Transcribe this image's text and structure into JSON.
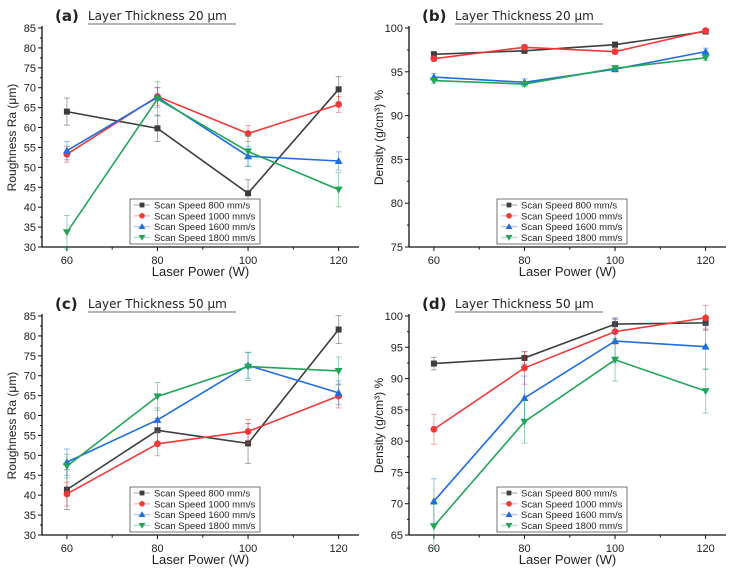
{
  "colors": {
    "s800": "#3d3d3d",
    "s1000": "#f03a3a",
    "s1600": "#1f6ee0",
    "s1800": "#22a55a"
  },
  "chart_data": [
    {
      "type": "line",
      "letter": "(a)",
      "title": "Layer Thickness 20 μm",
      "xlabel": "Laser Power (W)",
      "ylabel": "Roughness Ra (μm)",
      "x": [
        60,
        80,
        100,
        120
      ],
      "xlim": [
        54.5,
        124.5
      ],
      "ylim": [
        30,
        85
      ],
      "ystep": 5,
      "xticks": [
        "60",
        "80",
        "100",
        "120"
      ],
      "yticks": [
        "30",
        "35",
        "40",
        "45",
        "50",
        "55",
        "60",
        "65",
        "70",
        "75",
        "80",
        "85"
      ],
      "legend": "bottom-center",
      "series": [
        {
          "name": "Scan Speed 800 mm/s",
          "marker": "square",
          "values": [
            64.0,
            59.8,
            43.5,
            69.6
          ],
          "errors": [
            3.4,
            3.3,
            3.4,
            3.2
          ]
        },
        {
          "name": "Scan Speed 1000 mm/s",
          "marker": "circle",
          "values": [
            53.3,
            67.8,
            58.5,
            65.8
          ],
          "errors": [
            2.0,
            2.2,
            2.0,
            2.0
          ]
        },
        {
          "name": "Scan Speed 1600 mm/s",
          "marker": "triangle-up",
          "values": [
            54.2,
            67.6,
            52.8,
            51.6
          ],
          "errors": [
            2.3,
            2.5,
            2.5,
            2.3
          ]
        },
        {
          "name": "Scan Speed 1800 mm/s",
          "marker": "triangle-down",
          "values": [
            33.7,
            67.2,
            54.0,
            44.4
          ],
          "errors": [
            4.2,
            4.3,
            3.8,
            4.3
          ]
        }
      ]
    },
    {
      "type": "line",
      "letter": "(b)",
      "title": "Layer Thickness 20 μm",
      "xlabel": "Laser Power (W)",
      "ylabel": "Density (g/cm³) %",
      "x": [
        60,
        80,
        100,
        120
      ],
      "xlim": [
        54.5,
        124.5
      ],
      "ylim": [
        75,
        100
      ],
      "ystep": 5,
      "xticks": [
        "60",
        "80",
        "100",
        "120"
      ],
      "yticks": [
        "75",
        "80",
        "85",
        "90",
        "95",
        "100"
      ],
      "legend": "bottom-center",
      "series": [
        {
          "name": "Scan Speed 800 mm/s",
          "marker": "square",
          "values": [
            97.0,
            97.4,
            98.1,
            99.6
          ],
          "errors": [
            0.3,
            0.3,
            0.3,
            0.3
          ]
        },
        {
          "name": "Scan Speed 1000 mm/s",
          "marker": "circle",
          "values": [
            96.5,
            97.8,
            97.3,
            99.7
          ],
          "errors": [
            0.3,
            0.3,
            0.3,
            0.2
          ]
        },
        {
          "name": "Scan Speed 1600 mm/s",
          "marker": "triangle-up",
          "values": [
            94.4,
            93.8,
            95.3,
            97.3
          ],
          "errors": [
            0.4,
            0.4,
            0.3,
            0.4
          ]
        },
        {
          "name": "Scan Speed 1800 mm/s",
          "marker": "triangle-down",
          "values": [
            94.0,
            93.6,
            95.4,
            96.6
          ],
          "errors": [
            0.3,
            0.3,
            0.3,
            0.3
          ]
        }
      ]
    },
    {
      "type": "line",
      "letter": "(c)",
      "title": "Layer Thickness 50 μm",
      "xlabel": "Laser Power (W)",
      "ylabel": "Roughness Ra (μm)",
      "x": [
        60,
        80,
        100,
        120
      ],
      "xlim": [
        54.5,
        124.5
      ],
      "ylim": [
        30,
        85
      ],
      "ystep": 5,
      "xticks": [
        "60",
        "80",
        "100",
        "120"
      ],
      "yticks": [
        "30",
        "35",
        "40",
        "45",
        "50",
        "55",
        "60",
        "65",
        "70",
        "75",
        "80",
        "85"
      ],
      "legend": "bottom-center",
      "series": [
        {
          "name": "Scan Speed 800 mm/s",
          "marker": "square",
          "values": [
            41.4,
            56.3,
            53.0,
            81.6
          ],
          "errors": [
            5.0,
            3.0,
            5.0,
            3.5
          ]
        },
        {
          "name": "Scan Speed 1000 mm/s",
          "marker": "circle",
          "values": [
            40.3,
            52.9,
            56.0,
            64.9
          ],
          "errors": [
            3.0,
            3.0,
            3.0,
            3.0
          ]
        },
        {
          "name": "Scan Speed 1600 mm/s",
          "marker": "triangle-up",
          "values": [
            48.3,
            58.9,
            72.6,
            65.7
          ],
          "errors": [
            3.3,
            3.0,
            3.3,
            3.0
          ]
        },
        {
          "name": "Scan Speed 1800 mm/s",
          "marker": "triangle-down",
          "values": [
            47.3,
            64.8,
            72.3,
            71.2
          ],
          "errors": [
            3.0,
            3.5,
            3.5,
            3.5
          ]
        }
      ]
    },
    {
      "type": "line",
      "letter": "(d)",
      "title": "Layer Thickness 50 μm",
      "xlabel": "Laser Power (W)",
      "ylabel": "Density (g/cm³) %",
      "x": [
        60,
        80,
        100,
        120
      ],
      "xlim": [
        54.5,
        124.5
      ],
      "ylim": [
        65,
        100
      ],
      "ystep": 5,
      "xticks": [
        "60",
        "80",
        "100",
        "120"
      ],
      "yticks": [
        "65",
        "70",
        "75",
        "80",
        "85",
        "90",
        "95",
        "100"
      ],
      "legend": "bottom-center",
      "series": [
        {
          "name": "Scan Speed 800 mm/s",
          "marker": "square",
          "values": [
            92.4,
            93.3,
            98.7,
            98.9
          ],
          "errors": [
            1.0,
            1.0,
            1.0,
            1.0
          ]
        },
        {
          "name": "Scan Speed 1000 mm/s",
          "marker": "circle",
          "values": [
            81.9,
            91.7,
            97.5,
            99.7
          ],
          "errors": [
            2.4,
            2.6,
            2.0,
            2.0
          ]
        },
        {
          "name": "Scan Speed 1600 mm/s",
          "marker": "triangle-up",
          "values": [
            70.4,
            86.9,
            96.0,
            95.1
          ],
          "errors": [
            3.6,
            3.5,
            3.5,
            3.6
          ]
        },
        {
          "name": "Scan Speed 1800 mm/s",
          "marker": "triangle-down",
          "values": [
            66.4,
            83.1,
            93.0,
            88.0
          ],
          "errors": [
            3.5,
            3.4,
            3.4,
            3.5
          ]
        }
      ]
    }
  ]
}
